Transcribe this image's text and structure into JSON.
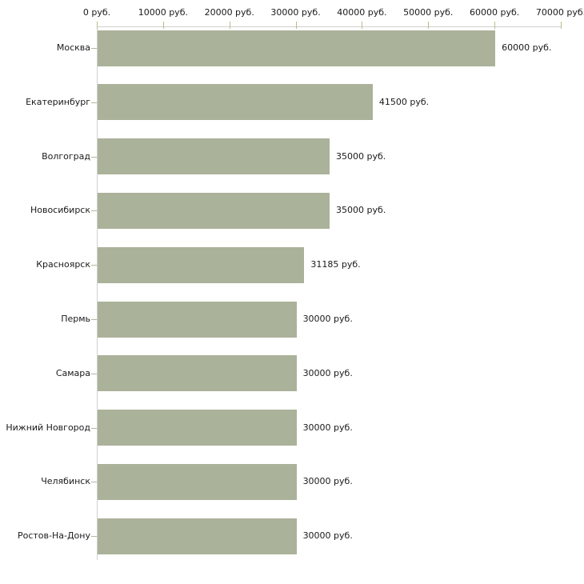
{
  "chart_data": {
    "type": "bar",
    "orientation": "horizontal",
    "title": "",
    "categories": [
      "Москва",
      "Екатеринбург",
      "Волгоград",
      "Новосибирск",
      "Красноярск",
      "Пермь",
      "Самара",
      "Нижний Новгород",
      "Челябинск",
      "Ростов-На-Дону"
    ],
    "values": [
      60000,
      41500,
      35000,
      35000,
      31185,
      30000,
      30000,
      30000,
      30000,
      30000
    ],
    "value_labels": [
      "60000 руб.",
      "41500 руб.",
      "35000 руб.",
      "35000 руб.",
      "31185 руб.",
      "30000 руб.",
      "30000 руб.",
      "30000 руб.",
      "30000 руб.",
      "30000 руб."
    ],
    "unit": "руб.",
    "xlabel": "",
    "ylabel": "",
    "xlim": [
      0,
      70000
    ],
    "xticks": [
      0,
      10000,
      20000,
      30000,
      40000,
      50000,
      60000,
      70000
    ],
    "xtick_labels": [
      "0 руб.",
      "10000 руб.",
      "20000 руб.",
      "30000 руб.",
      "40000 руб.",
      "50000 руб.",
      "60000 руб.",
      "70000 руб."
    ],
    "grid": false,
    "legend": false,
    "axis_position": "top"
  },
  "colors": {
    "bar_fill": "#abb29a",
    "axis_line": "#cfcfcf",
    "xtick_mark": "#b9bc8e",
    "category_tick": "#b3b6a0",
    "text": "#1a1a1a",
    "background": "#ffffff"
  }
}
